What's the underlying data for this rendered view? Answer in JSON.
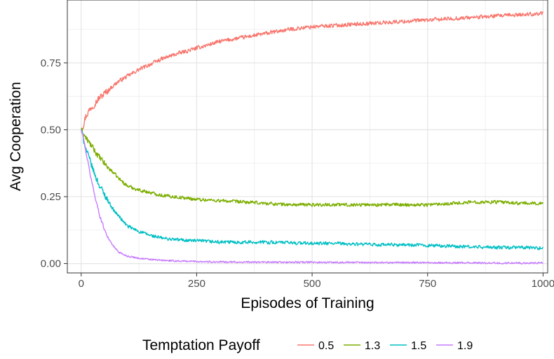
{
  "chart_data": {
    "type": "line",
    "title": "",
    "xlabel": "Episodes of Training",
    "ylabel": "Avg Cooperation",
    "xlim": [
      -30,
      1010
    ],
    "ylim": [
      -0.035,
      0.985
    ],
    "xticks": [
      0,
      250,
      500,
      750,
      1000
    ],
    "xtick_labels": [
      "0",
      "250",
      "500",
      "750",
      "1000"
    ],
    "yticks": [
      0,
      0.25,
      0.5,
      0.75
    ],
    "ytick_labels": [
      "0.00",
      "0.25",
      "0.50",
      "0.75"
    ],
    "grid": true,
    "legend": {
      "title": "Temptation Payoff",
      "position": "bottom"
    },
    "series": [
      {
        "name": "0.5",
        "color": "#F8766D",
        "x": [
          0,
          5,
          10,
          20,
          30,
          40,
          50,
          60,
          70,
          80,
          90,
          100,
          125,
          150,
          175,
          200,
          250,
          300,
          350,
          400,
          450,
          500,
          550,
          600,
          650,
          700,
          750,
          800,
          850,
          900,
          950,
          1000
        ],
        "y": [
          0.5,
          0.52,
          0.55,
          0.58,
          0.6,
          0.62,
          0.635,
          0.65,
          0.665,
          0.68,
          0.69,
          0.7,
          0.725,
          0.745,
          0.765,
          0.78,
          0.805,
          0.83,
          0.845,
          0.86,
          0.875,
          0.885,
          0.89,
          0.895,
          0.9,
          0.905,
          0.91,
          0.915,
          0.92,
          0.925,
          0.93,
          0.935
        ]
      },
      {
        "name": "1.3",
        "color": "#7CAE00",
        "x": [
          0,
          10,
          20,
          30,
          40,
          50,
          60,
          70,
          80,
          90,
          100,
          125,
          150,
          175,
          200,
          250,
          300,
          350,
          400,
          450,
          500,
          550,
          600,
          650,
          700,
          750,
          800,
          850,
          900,
          950,
          1000
        ],
        "y": [
          0.5,
          0.47,
          0.445,
          0.42,
          0.395,
          0.375,
          0.355,
          0.34,
          0.32,
          0.305,
          0.29,
          0.275,
          0.265,
          0.255,
          0.25,
          0.24,
          0.235,
          0.23,
          0.225,
          0.22,
          0.22,
          0.22,
          0.22,
          0.22,
          0.22,
          0.22,
          0.225,
          0.23,
          0.23,
          0.225,
          0.225
        ]
      },
      {
        "name": "1.5",
        "color": "#00BFC4",
        "x": [
          0,
          10,
          20,
          30,
          40,
          50,
          60,
          70,
          80,
          90,
          100,
          125,
          150,
          175,
          200,
          250,
          300,
          350,
          400,
          450,
          500,
          550,
          600,
          650,
          700,
          750,
          800,
          850,
          900,
          950,
          1000
        ],
        "y": [
          0.5,
          0.43,
          0.38,
          0.33,
          0.29,
          0.26,
          0.23,
          0.2,
          0.18,
          0.16,
          0.14,
          0.12,
          0.105,
          0.095,
          0.09,
          0.085,
          0.08,
          0.08,
          0.08,
          0.078,
          0.075,
          0.075,
          0.072,
          0.07,
          0.07,
          0.068,
          0.065,
          0.062,
          0.06,
          0.06,
          0.058
        ]
      },
      {
        "name": "1.9",
        "color": "#C77CFF",
        "x": [
          0,
          5,
          10,
          20,
          30,
          40,
          50,
          60,
          70,
          80,
          90,
          100,
          125,
          150,
          175,
          200,
          250,
          300,
          400,
          500,
          600,
          700,
          800,
          900,
          1000
        ],
        "y": [
          0.5,
          0.47,
          0.42,
          0.33,
          0.25,
          0.18,
          0.13,
          0.09,
          0.065,
          0.045,
          0.035,
          0.028,
          0.02,
          0.015,
          0.012,
          0.01,
          0.008,
          0.006,
          0.005,
          0.005,
          0.004,
          0.004,
          0.003,
          0.002,
          0.002
        ]
      }
    ]
  }
}
